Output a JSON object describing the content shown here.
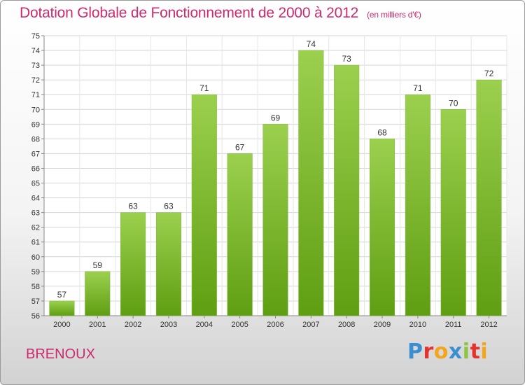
{
  "header": {
    "title": "Dotation Globale de Fonctionnement de 2000 à 2012",
    "unit": "(en milliers d'€)"
  },
  "footer": {
    "city": "BRENOUX",
    "logo": "Proxiti"
  },
  "colors": {
    "accent": "#cc2a6e",
    "bar_top": "#9bd04e",
    "bar_bottom": "#5f9e12"
  },
  "chart_data": {
    "type": "bar",
    "title": "Dotation Globale de Fonctionnement de 2000 à 2012",
    "categories": [
      "2000",
      "2001",
      "2002",
      "2003",
      "2004",
      "2005",
      "2006",
      "2007",
      "2008",
      "2009",
      "2010",
      "2011",
      "2012"
    ],
    "values": [
      57,
      59,
      63,
      63,
      71,
      67,
      69,
      74,
      73,
      68,
      71,
      70,
      72
    ],
    "ylim": [
      56,
      75
    ],
    "yticks": [
      56,
      57,
      58,
      59,
      60,
      61,
      62,
      63,
      64,
      65,
      66,
      67,
      68,
      69,
      70,
      71,
      72,
      73,
      74,
      75
    ],
    "grid": true,
    "xlabel": "",
    "ylabel": ""
  }
}
